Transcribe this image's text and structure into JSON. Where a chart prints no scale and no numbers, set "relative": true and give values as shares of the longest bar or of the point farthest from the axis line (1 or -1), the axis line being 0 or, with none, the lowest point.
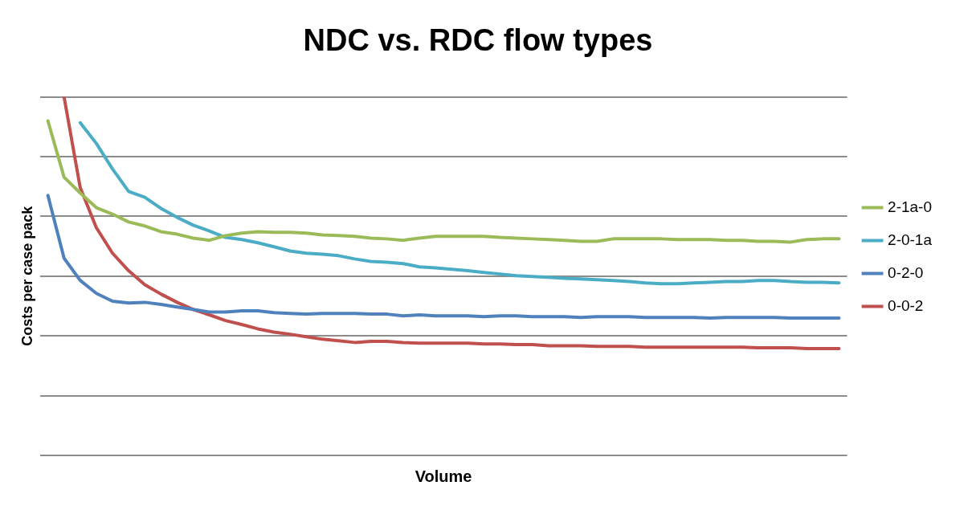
{
  "chart_data": {
    "type": "line",
    "title": "NDC vs. RDC flow types",
    "xlabel": "Volume",
    "ylabel": "Costs per case pack",
    "relative": true,
    "grid": "y",
    "legend": "right",
    "marker": "none",
    "line_style": "solid",
    "categories": [
      null,
      null,
      null,
      null,
      null,
      null,
      null,
      null,
      null,
      null,
      null,
      null,
      null,
      null,
      null,
      null,
      null,
      null,
      null,
      null,
      null,
      null,
      null,
      null,
      null,
      null,
      null,
      null,
      null,
      null,
      null,
      null,
      null,
      null,
      null,
      null,
      null,
      null,
      null,
      null,
      null,
      null,
      null,
      null,
      null,
      null,
      null,
      null,
      null,
      null
    ],
    "series": [
      {
        "name": "2-1a-0",
        "color": "#9bbb59",
        "values": [
          0.933,
          0.776,
          0.732,
          0.691,
          0.673,
          0.651,
          0.64,
          0.624,
          0.617,
          0.606,
          0.6,
          0.613,
          0.62,
          0.624,
          0.622,
          0.622,
          0.62,
          0.615,
          0.613,
          0.611,
          0.606,
          0.604,
          0.6,
          0.606,
          0.611,
          0.611,
          0.611,
          0.611,
          0.608,
          0.606,
          0.604,
          0.602,
          0.6,
          0.597,
          0.597,
          0.604,
          0.604,
          0.604,
          0.604,
          0.602,
          0.602,
          0.602,
          0.6,
          0.6,
          0.597,
          0.597,
          0.595,
          0.602,
          0.604,
          0.604
        ]
      },
      {
        "name": "2-0-1a",
        "color": "#4bacc6",
        "values": [
          null,
          null,
          0.928,
          0.87,
          0.799,
          0.736,
          0.72,
          0.689,
          0.664,
          0.642,
          0.626,
          0.608,
          0.602,
          0.593,
          0.582,
          0.57,
          0.564,
          0.561,
          0.557,
          0.548,
          0.541,
          0.539,
          0.535,
          0.526,
          0.523,
          0.519,
          0.515,
          0.51,
          0.506,
          0.501,
          0.499,
          0.497,
          0.494,
          0.492,
          0.49,
          0.488,
          0.485,
          0.481,
          0.479,
          0.479,
          0.481,
          0.483,
          0.485,
          0.485,
          0.488,
          0.488,
          0.485,
          0.483,
          0.483,
          0.481
        ]
      },
      {
        "name": "0-2-0",
        "color": "#4f81bd",
        "values": [
          0.725,
          0.55,
          0.488,
          0.452,
          0.43,
          0.425,
          0.427,
          0.421,
          0.414,
          0.407,
          0.4,
          0.4,
          0.403,
          0.403,
          0.398,
          0.396,
          0.394,
          0.396,
          0.396,
          0.396,
          0.394,
          0.394,
          0.389,
          0.392,
          0.389,
          0.389,
          0.389,
          0.387,
          0.389,
          0.389,
          0.387,
          0.387,
          0.387,
          0.385,
          0.387,
          0.387,
          0.387,
          0.385,
          0.385,
          0.385,
          0.385,
          0.383,
          0.385,
          0.385,
          0.385,
          0.385,
          0.383,
          0.383,
          0.383,
          0.383
        ]
      },
      {
        "name": "0-0-2",
        "color": "#c0504d",
        "values": [
          null,
          1,
          0.747,
          0.635,
          0.564,
          0.515,
          0.476,
          0.45,
          0.427,
          0.407,
          0.392,
          0.376,
          0.365,
          0.353,
          0.344,
          0.338,
          0.331,
          0.324,
          0.32,
          0.315,
          0.318,
          0.318,
          0.315,
          0.313,
          0.313,
          0.313,
          0.313,
          0.311,
          0.311,
          0.309,
          0.309,
          0.306,
          0.306,
          0.306,
          0.304,
          0.304,
          0.304,
          0.302,
          0.302,
          0.302,
          0.302,
          0.302,
          0.302,
          0.302,
          0.3,
          0.3,
          0.3,
          0.298,
          0.298,
          0.298
        ]
      }
    ]
  }
}
